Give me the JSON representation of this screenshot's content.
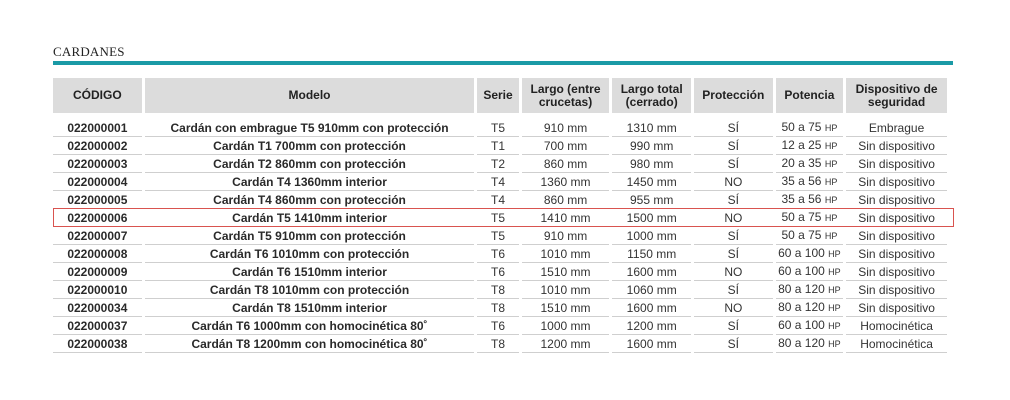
{
  "section_title": "CARDANES",
  "headers": {
    "codigo": "CÓDIGO",
    "modelo": "Modelo",
    "serie": "Serie",
    "largo_entre": "Largo (entre crucetas)",
    "largo_total": "Largo total (cerrado)",
    "proteccion": "Protección",
    "potencia": "Potencia",
    "dispositivo": "Dispositivo de seguridad"
  },
  "hp_unit": "HP",
  "rows": [
    {
      "codigo": "022000001",
      "modelo": "Cardán con embrague T5 910mm con protección",
      "serie": "T5",
      "largo_entre": "910 mm",
      "largo_total": "1310 mm",
      "proteccion": "SÍ",
      "potencia": "50 a 75",
      "dispositivo": "Embrague"
    },
    {
      "codigo": "022000002",
      "modelo": "Cardán T1 700mm con protección",
      "serie": "T1",
      "largo_entre": "700 mm",
      "largo_total": "990 mm",
      "proteccion": "SÍ",
      "potencia": "12 a 25",
      "dispositivo": "Sin dispositivo"
    },
    {
      "codigo": "022000003",
      "modelo": "Cardán T2 860mm con protección",
      "serie": "T2",
      "largo_entre": "860 mm",
      "largo_total": "980 mm",
      "proteccion": "SÍ",
      "potencia": "20 a 35",
      "dispositivo": "Sin dispositivo"
    },
    {
      "codigo": "022000004",
      "modelo": "Cardán T4 1360mm interior",
      "serie": "T4",
      "largo_entre": "1360 mm",
      "largo_total": "1450 mm",
      "proteccion": "NO",
      "potencia": "35 a 56",
      "dispositivo": "Sin dispositivo"
    },
    {
      "codigo": "022000005",
      "modelo": "Cardán T4 860mm con protección",
      "serie": "T4",
      "largo_entre": "860 mm",
      "largo_total": "955 mm",
      "proteccion": "SÍ",
      "potencia": "35 a 56",
      "dispositivo": "Sin dispositivo"
    },
    {
      "codigo": "022000006",
      "modelo": "Cardán T5 1410mm interior",
      "serie": "T5",
      "largo_entre": "1410 mm",
      "largo_total": "1500 mm",
      "proteccion": "NO",
      "potencia": "50 a 75",
      "dispositivo": "Sin dispositivo"
    },
    {
      "codigo": "022000007",
      "modelo": "Cardán T5 910mm con protección",
      "serie": "T5",
      "largo_entre": "910 mm",
      "largo_total": "1000 mm",
      "proteccion": "SÍ",
      "potencia": "50 a 75",
      "dispositivo": "Sin dispositivo"
    },
    {
      "codigo": "022000008",
      "modelo": "Cardán T6 1010mm con protección",
      "serie": "T6",
      "largo_entre": "1010 mm",
      "largo_total": "1150 mm",
      "proteccion": "SÍ",
      "potencia": "60 a 100",
      "dispositivo": "Sin dispositivo"
    },
    {
      "codigo": "022000009",
      "modelo": "Cardán T6 1510mm interior",
      "serie": "T6",
      "largo_entre": "1510 mm",
      "largo_total": "1600 mm",
      "proteccion": "NO",
      "potencia": "60 a 100",
      "dispositivo": "Sin dispositivo"
    },
    {
      "codigo": "022000010",
      "modelo": "Cardán T8 1010mm con protección",
      "serie": "T8",
      "largo_entre": "1010 mm",
      "largo_total": "1060 mm",
      "proteccion": "SÍ",
      "potencia": "80 a 120",
      "dispositivo": "Sin dispositivo"
    },
    {
      "codigo": "022000034",
      "modelo": "Cardán T8 1510mm interior",
      "serie": "T8",
      "largo_entre": "1510 mm",
      "largo_total": "1600 mm",
      "proteccion": "NO",
      "potencia": "80 a 120",
      "dispositivo": "Sin dispositivo"
    },
    {
      "codigo": "022000037",
      "modelo": "Cardán T6 1000mm con homocinética 80˚",
      "serie": "T6",
      "largo_entre": "1000 mm",
      "largo_total": "1200 mm",
      "proteccion": "SÍ",
      "potencia": "60 a 100",
      "dispositivo": "Homocinética"
    },
    {
      "codigo": "022000038",
      "modelo": "Cardán T8 1200mm con homocinética 80˚",
      "serie": "T8",
      "largo_entre": "1200 mm",
      "largo_total": "1600 mm",
      "proteccion": "SÍ",
      "potencia": "80 a 120",
      "dispositivo": "Homocinética"
    }
  ],
  "highlighted_row": 5,
  "colors": {
    "accent_rule": "#1a9aa6",
    "header_bg": "#dcdcdc",
    "highlight_border": "#d9534f"
  }
}
